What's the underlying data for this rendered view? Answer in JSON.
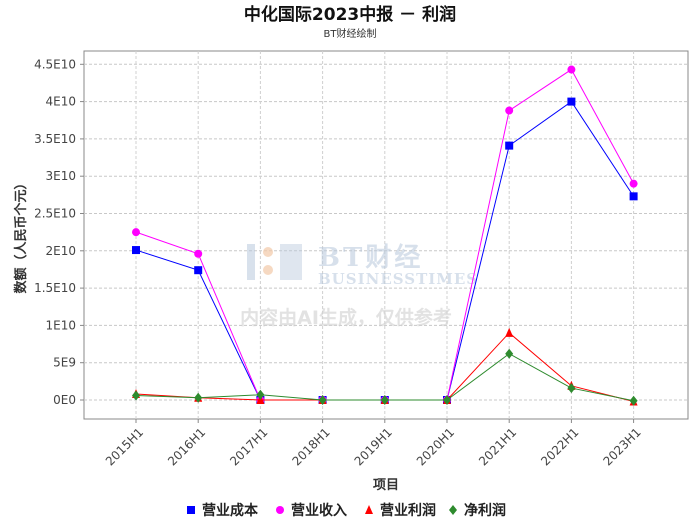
{
  "chart_data": {
    "type": "line",
    "title": "中化国际2023中报 － 利润",
    "subtitle": "BT财经绘制",
    "xlabel": "项目",
    "ylabel": "数额（人民币个元）",
    "categories": [
      "2015H1",
      "2016H1",
      "2017H1",
      "2018H1",
      "2019H1",
      "2020H1",
      "2021H1",
      "2022H1",
      "2023H1"
    ],
    "y_ticks": [
      "0E0",
      "5E9",
      "1E10",
      "1.5E10",
      "2E10",
      "2.5E10",
      "3E10",
      "3.5E10",
      "4E10",
      "4.5E10"
    ],
    "ylim": [
      -1300000000,
      46500000000
    ],
    "grid": true,
    "legend_position": "bottom",
    "series": [
      {
        "name": "营业成本",
        "color": "#0000ff",
        "marker": "square",
        "values": [
          20100000000,
          17400000000,
          0,
          0,
          0,
          0,
          34100000000,
          40000000000,
          27300000000
        ]
      },
      {
        "name": "营业收入",
        "color": "#ff00ff",
        "marker": "circle",
        "values": [
          22500000000,
          19600000000,
          0,
          0,
          0,
          0,
          38800000000,
          44300000000,
          29000000000
        ]
      },
      {
        "name": "营业利润",
        "color": "#ff0000",
        "marker": "triangle",
        "values": [
          800000000,
          300000000,
          0,
          0,
          0,
          0,
          9000000000,
          1900000000,
          -200000000
        ]
      },
      {
        "name": "净利润",
        "color": "#2e8b2e",
        "marker": "diamond",
        "values": [
          600000000,
          300000000,
          700000000,
          0,
          0,
          0,
          6200000000,
          1600000000,
          -100000000
        ]
      }
    ]
  },
  "watermark": {
    "brand": "BT财经",
    "brand_en": "BUSINESSTIMES",
    "notice": "内容由AI生成，仅供参考"
  }
}
